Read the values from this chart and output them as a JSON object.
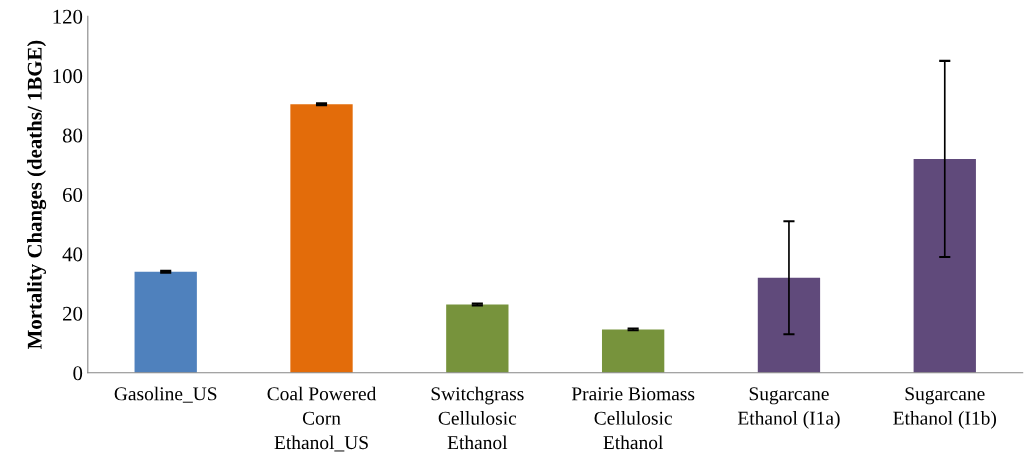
{
  "chart_data": {
    "type": "bar",
    "ylabel": "Mortality Changes (deaths/ 1BGE)",
    "categories": [
      "Gasoline_US",
      "Coal Powered\nCorn\nEthanol_US",
      "Switchgrass\nCellulosic\nEthanol",
      "Prairie Biomass\nCellulosic\nEthanol",
      "Sugarcane\nEthanol (I1a)",
      "Sugarcane\nEthanol (I1b)"
    ],
    "values": [
      34,
      90.4,
      23,
      14.6,
      32,
      72
    ],
    "errors": [
      0.3,
      0.3,
      0.3,
      0.3,
      19,
      33
    ],
    "colors": [
      "#4f81bd",
      "#e36c0a",
      "#77933c",
      "#77933c",
      "#604a7b",
      "#604a7b"
    ],
    "ylim": [
      0,
      120
    ],
    "yticks": [
      0,
      20,
      40,
      60,
      80,
      100,
      120
    ],
    "grid": false,
    "legend": false
  }
}
